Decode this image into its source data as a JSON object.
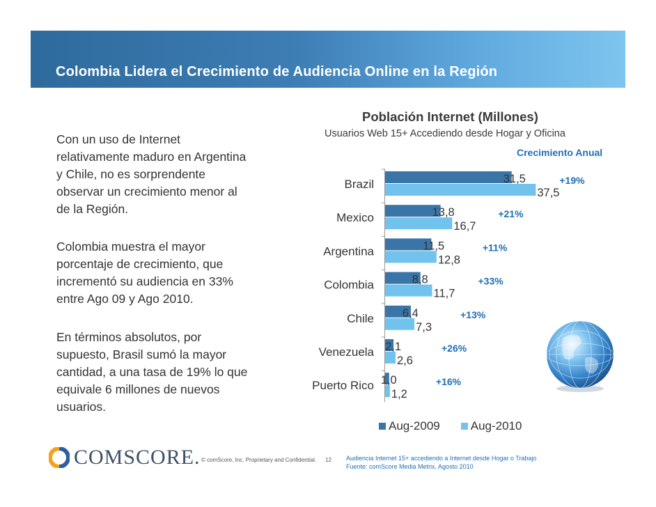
{
  "slide": {
    "title": "Colombia Lidera el Crecimiento de Audiencia Online en la Región",
    "page_number": "12"
  },
  "left_text": {
    "p1": "Con un uso de Internet\nrelativamente maduro en Argentina\ny Chile, no es sorprendente\nobservar un crecimiento menor al\nde la Región.",
    "p2": "Colombia muestra el mayor\nporcentaje de crecimiento, que\nincrementó su audiencia en 33%\nentre Ago 09 y Ago 2010.",
    "p3": "En términos absolutos, por\nsupuesto, Brasil sumó la mayor\ncantidad, a una tasa de 19% lo que\nequivale 6 millones de nuevos\nusuarios."
  },
  "chart_data": {
    "type": "bar",
    "orientation": "horizontal",
    "title": "Población Internet (Millones)",
    "subtitle": "Usuarios Web 15+ Accediendo desde Hogar y Oficina",
    "growth_header": "Crecimiento Anual",
    "categories": [
      "Brazil",
      "Mexico",
      "Argentina",
      "Colombia",
      "Chile",
      "Venezuela",
      "Puerto Rico"
    ],
    "series": [
      {
        "name": "Aug-2009",
        "color": "#3a75a8",
        "values": [
          31.5,
          13.8,
          11.5,
          8.8,
          6.4,
          2.1,
          1.0
        ],
        "labels": [
          "31,5",
          "13,8",
          "11,5",
          "8,8",
          "6,4",
          "2,1",
          "1,0"
        ]
      },
      {
        "name": "Aug-2010",
        "color": "#72c2ee",
        "values": [
          37.5,
          16.7,
          12.8,
          11.7,
          7.3,
          2.6,
          1.2
        ],
        "labels": [
          "37,5",
          "16,7",
          "12,8",
          "11,7",
          "7,3",
          "2,6",
          "1,2"
        ]
      }
    ],
    "growth": [
      "+19%",
      "+21%",
      "+11%",
      "+33%",
      "+13%",
      "+26%",
      "+16%"
    ],
    "xlim": [
      0,
      40
    ],
    "legend": "bottom"
  },
  "footer": {
    "logo_text": "COMSCORE.",
    "copyright": "© comScore, Inc.  Proprietary and Confidential.",
    "note_line1": "Audiencia Internet 15+ accediendo a Internet desde Hogar o Trabajo",
    "note_line2": "Fuente: comScore Media Metrix, Agosto 2010"
  },
  "colors": {
    "banner_start": "#2e6a9c",
    "banner_end": "#7ec5ee",
    "accent_blue": "#1f6fb5"
  }
}
